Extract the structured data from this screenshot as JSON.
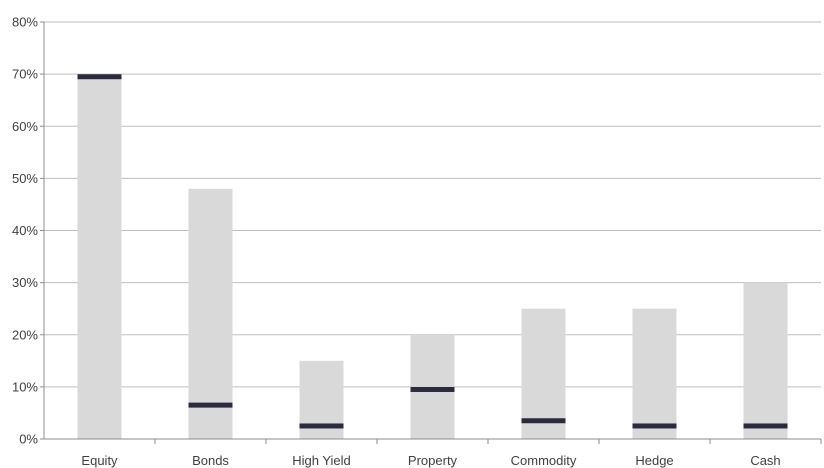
{
  "chart_data": {
    "type": "bar",
    "categories": [
      "Equity",
      "Bonds",
      "High Yield",
      "Property",
      "Commodity",
      "Hedge",
      "Cash"
    ],
    "series": [
      {
        "values": [
          70,
          48,
          15,
          20,
          25,
          25,
          30
        ]
      },
      {
        "values": [
          69.5,
          6.5,
          2.5,
          9.5,
          3.5,
          2.5,
          2.5
        ]
      }
    ],
    "yticks": [
      "0%",
      "10%",
      "20%",
      "30%",
      "40%",
      "50%",
      "60%",
      "70%",
      "80%"
    ],
    "ylim": [
      0,
      80
    ],
    "grid": true,
    "colors": {
      "bar": "#d9d9d9",
      "marker": "#2b2a3f",
      "grid": "#bfbfbf",
      "axis": "#8c8c8c"
    }
  }
}
